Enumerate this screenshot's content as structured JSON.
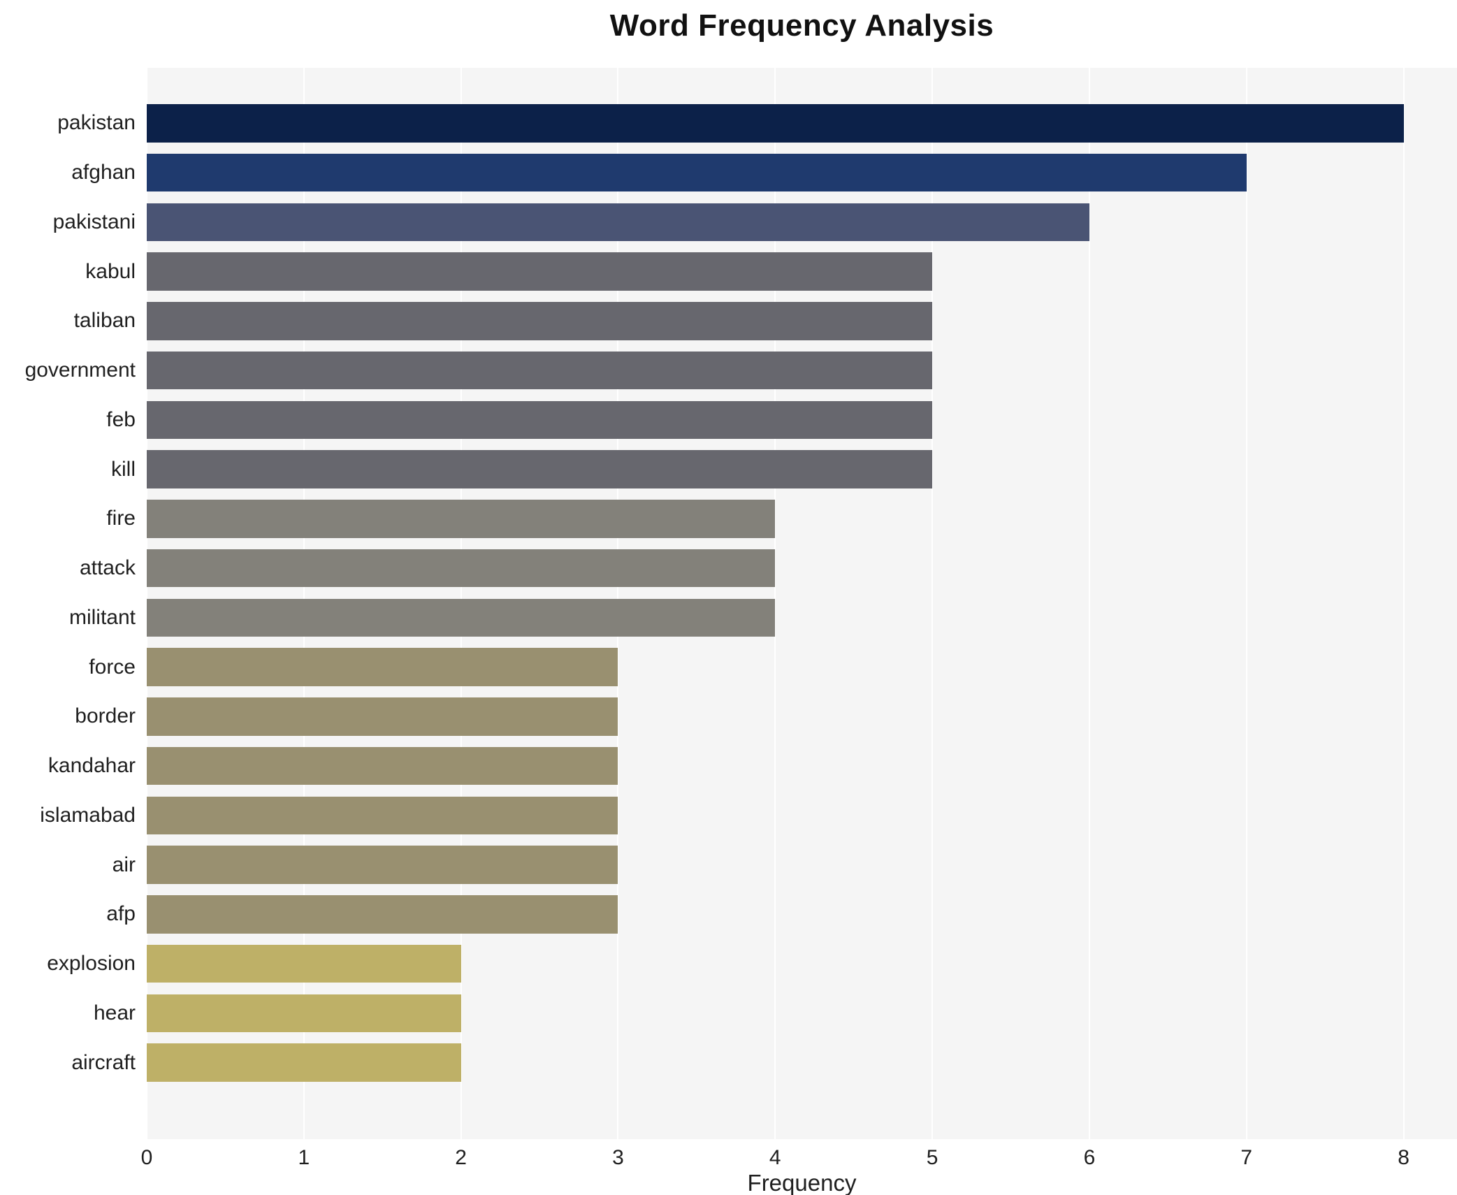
{
  "chart_data": {
    "type": "bar",
    "orientation": "horizontal",
    "title": "Word Frequency Analysis",
    "xlabel": "Frequency",
    "ylabel": "",
    "xlim": [
      0,
      8.34
    ],
    "x_ticks": [
      0,
      1,
      2,
      3,
      4,
      5,
      6,
      7,
      8
    ],
    "grid": true,
    "legend": false,
    "categories": [
      "pakistan",
      "afghan",
      "pakistani",
      "kabul",
      "taliban",
      "government",
      "feb",
      "kill",
      "fire",
      "attack",
      "militant",
      "force",
      "border",
      "kandahar",
      "islamabad",
      "air",
      "afp",
      "explosion",
      "hear",
      "aircraft"
    ],
    "values": [
      8,
      7,
      6,
      5,
      5,
      5,
      5,
      5,
      4,
      4,
      4,
      3,
      3,
      3,
      3,
      3,
      3,
      2,
      2,
      2
    ],
    "bar_colors": [
      "#0c2149",
      "#1f3a6e",
      "#4a5474",
      "#67676e",
      "#67676e",
      "#67676e",
      "#67676e",
      "#67676e",
      "#83817a",
      "#83817a",
      "#83817a",
      "#999070",
      "#999070",
      "#999070",
      "#999070",
      "#999070",
      "#999070",
      "#beb067",
      "#beb067",
      "#beb067"
    ]
  },
  "style": {
    "plot_bg": "#f5f5f5",
    "grid_color": "#ffffff",
    "title_color": "#111111",
    "text_color": "#1f1f1f"
  }
}
